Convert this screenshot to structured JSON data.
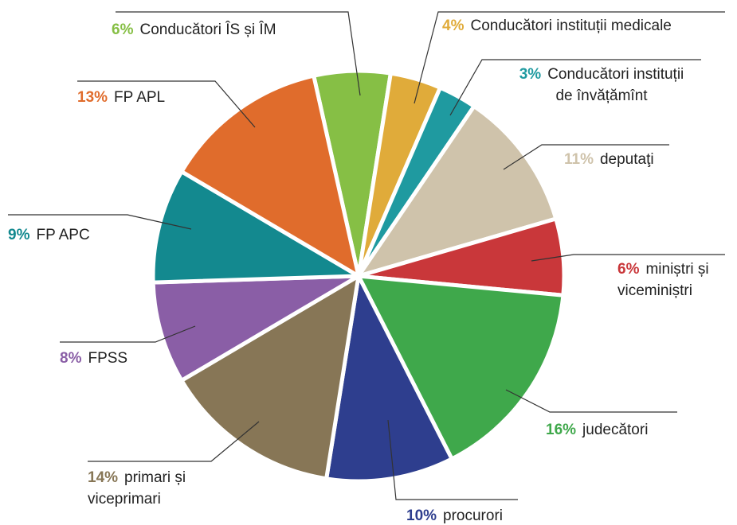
{
  "chart_data": {
    "type": "pie",
    "categories": [
      "Conducători ÎS și ÎM",
      "Conducători instituții medicale",
      "Conducători instituții\nde învățămînt",
      "deputaţi",
      "miniștri și\nviceminiștri",
      "judecători",
      "procurori",
      "primari și\nviceprimari",
      "FPSS",
      "FP APC",
      "FP APL"
    ],
    "values": [
      6,
      4,
      3,
      11,
      6,
      16,
      10,
      14,
      8,
      9,
      13
    ],
    "value_labels": [
      "6%",
      "4%",
      "3%",
      "11%",
      "6%",
      "16%",
      "10%",
      "14%",
      "8%",
      "9%",
      "13%"
    ],
    "colors": [
      "#86bf45",
      "#e0ab3a",
      "#1f9aa0",
      "#cfc3ab",
      "#c9373a",
      "#3fa84b",
      "#2e3e8e",
      "#877656",
      "#8a5ea6",
      "#13898f",
      "#e06c2c"
    ]
  }
}
